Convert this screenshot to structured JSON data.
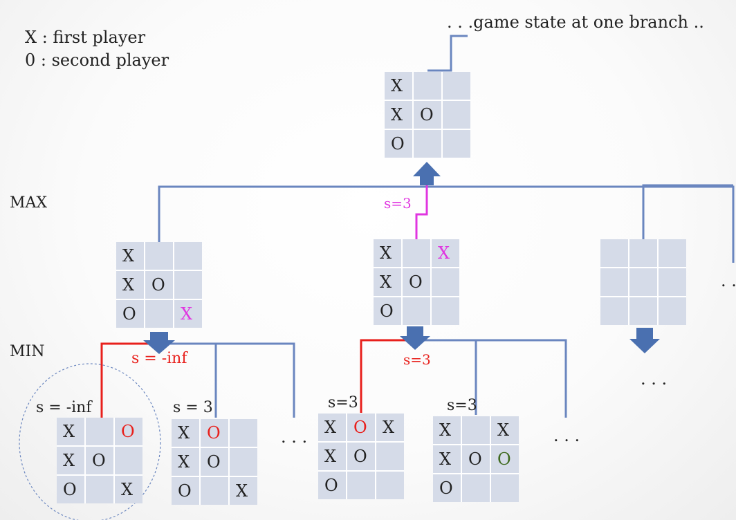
{
  "legend": {
    "first": "X : first player",
    "second": "0 : second player"
  },
  "levels": {
    "max": "MAX",
    "min": "MIN"
  },
  "caption": ". . .game state at one branch ..",
  "colors": {
    "connector": "#6a86bf",
    "arrow": "#4a70b0",
    "highlight_path": "#e8201c",
    "score_pink": "#e035e0",
    "cell_fill": "#d5dbe8",
    "red_o": "#e8201c",
    "green_o": "#3f6a1f"
  },
  "boards": {
    "root": [
      [
        "X",
        "",
        ""
      ],
      [
        "X",
        "O",
        ""
      ],
      [
        "O",
        "",
        ""
      ]
    ],
    "max_a": [
      [
        "X",
        "",
        ""
      ],
      [
        "X",
        "O",
        ""
      ],
      [
        "O",
        "",
        "X"
      ]
    ],
    "max_b": [
      [
        "X",
        "",
        "X"
      ],
      [
        "X",
        "O",
        ""
      ],
      [
        "O",
        "",
        ""
      ]
    ],
    "max_c": [
      [
        "",
        "",
        ""
      ],
      [
        "",
        "",
        ""
      ],
      [
        "",
        "",
        ""
      ]
    ],
    "min_a1": [
      [
        "X",
        "",
        "O"
      ],
      [
        "X",
        "O",
        ""
      ],
      [
        "O",
        "",
        "X"
      ]
    ],
    "min_a2": [
      [
        "X",
        "O",
        ""
      ],
      [
        "X",
        "O",
        ""
      ],
      [
        "O",
        "",
        "X"
      ]
    ],
    "min_b1": [
      [
        "X",
        "O",
        "X"
      ],
      [
        "X",
        "O",
        ""
      ],
      [
        "O",
        "",
        ""
      ]
    ],
    "min_b2": [
      [
        "X",
        "",
        "X"
      ],
      [
        "X",
        "O",
        "O"
      ],
      [
        "O",
        "",
        ""
      ]
    ]
  },
  "highlights": {
    "max_a": {
      "2-2": "pink"
    },
    "max_b": {
      "0-2": "pink"
    },
    "min_a1": {
      "0-2": "red"
    },
    "min_a2": {
      "0-1": "red"
    },
    "min_b1": {
      "0-1": "red"
    },
    "min_b2": {
      "1-2": "green"
    }
  },
  "scores": {
    "root_edge": "s=3",
    "max_a": "s = -inf",
    "max_b": "s=3",
    "min_a1": "s = -inf",
    "min_a2": "s = 3",
    "min_b1": "s=3",
    "min_b2": "s=3"
  },
  "ellipses": {
    "min_a": ". . .",
    "min_b": ". . .",
    "max_c": ". . .",
    "right_edge": ". ."
  }
}
